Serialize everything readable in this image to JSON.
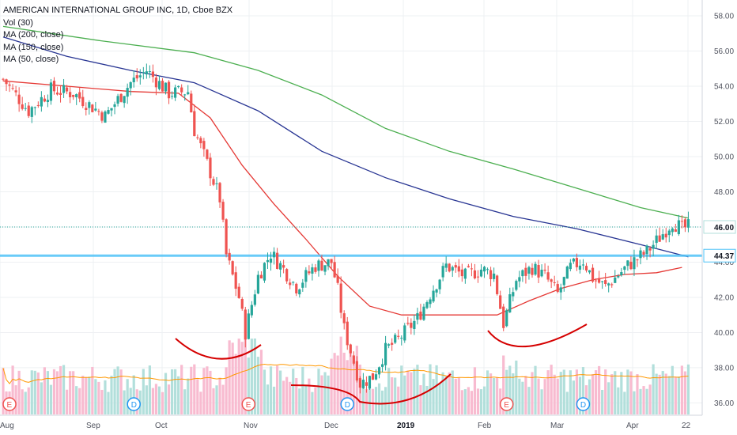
{
  "header": {
    "title": "AMERICAN INTERNATIONAL GROUP INC, 1D, Cboe BZX",
    "indicators": [
      "Vol (30)",
      "MA (200, close)",
      "MA (150, close)",
      "MA (50, close)"
    ]
  },
  "colors": {
    "up": "#26a69a",
    "down": "#ef5350",
    "vol_up": "#b2dfdb",
    "vol_down": "#f8bbd0",
    "ma200": "#4caf50",
    "ma150": "#283593",
    "ma50": "#e53935",
    "vol_ma": "#ff9800",
    "resistance": "#4fc3f7",
    "curves": "#d50000"
  },
  "chart_data": {
    "type": "candlestick",
    "y_axis": {
      "min": 35.3,
      "max": 58.9,
      "ticks": [
        "36.00",
        "38.00",
        "40.00",
        "42.00",
        "44.00",
        "46.00",
        "48.00",
        "50.00",
        "52.00",
        "54.00",
        "56.00",
        "58.00"
      ]
    },
    "x_ticks": [
      "Aug",
      "Sep",
      "Oct",
      "Nov",
      "Dec",
      "2019",
      "Feb",
      "Mar",
      "Apr",
      "22"
    ],
    "price_labels": [
      {
        "value": 46.0,
        "text": "46.00"
      },
      {
        "value": 44.37,
        "text": "44.37"
      }
    ],
    "resistance_level": 44.37,
    "last_price": 46.0,
    "event_markers": [
      {
        "label": "E",
        "index": 1
      },
      {
        "label": "D",
        "index": 40
      },
      {
        "label": "E",
        "index": 76
      },
      {
        "label": "D",
        "index": 107
      },
      {
        "label": "E",
        "index": 157
      },
      {
        "label": "D",
        "index": 181
      }
    ],
    "ma200": [
      [
        0,
        57.4
      ],
      [
        30,
        56.6
      ],
      [
        60,
        55.9
      ],
      [
        80,
        54.9
      ],
      [
        100,
        53.5
      ],
      [
        120,
        51.6
      ],
      [
        140,
        50.3
      ],
      [
        160,
        49.3
      ],
      [
        180,
        48.2
      ],
      [
        200,
        47.1
      ],
      [
        215,
        46.5
      ]
    ],
    "ma150": [
      [
        0,
        56.8
      ],
      [
        20,
        55.7
      ],
      [
        40,
        54.9
      ],
      [
        60,
        54.2
      ],
      [
        80,
        52.6
      ],
      [
        100,
        50.3
      ],
      [
        120,
        48.8
      ],
      [
        140,
        47.6
      ],
      [
        160,
        46.6
      ],
      [
        180,
        45.9
      ],
      [
        200,
        45.0
      ],
      [
        215,
        44.3
      ]
    ],
    "ma50": [
      [
        0,
        54.3
      ],
      [
        20,
        54.0
      ],
      [
        40,
        53.7
      ],
      [
        55,
        53.6
      ],
      [
        65,
        52.2
      ],
      [
        75,
        49.5
      ],
      [
        85,
        47.3
      ],
      [
        95,
        45.3
      ],
      [
        105,
        43.2
      ],
      [
        115,
        41.5
      ],
      [
        125,
        41.0
      ],
      [
        140,
        41.0
      ],
      [
        155,
        41.0
      ],
      [
        165,
        41.8
      ],
      [
        175,
        42.5
      ],
      [
        185,
        43.0
      ],
      [
        195,
        43.3
      ],
      [
        205,
        43.4
      ],
      [
        213,
        43.7
      ]
    ],
    "candles": [],
    "volume": []
  }
}
